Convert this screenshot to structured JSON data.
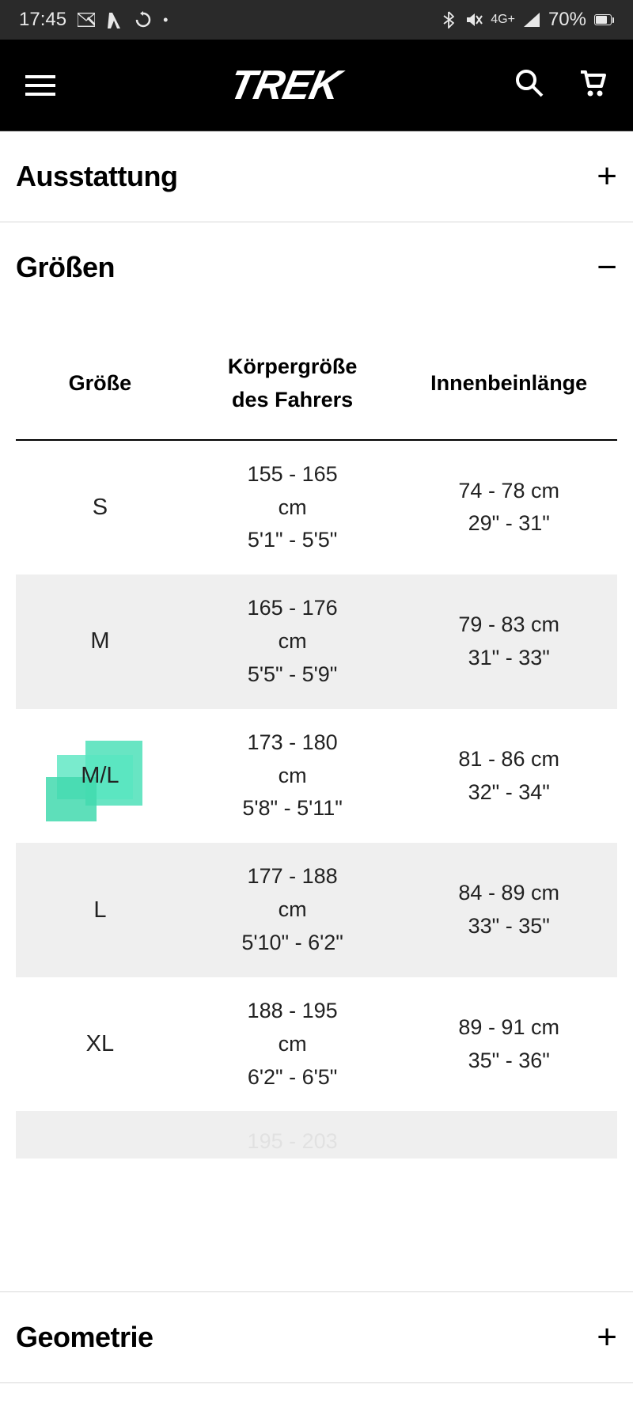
{
  "status": {
    "time": "17:45",
    "network": "4G+",
    "battery": "70%"
  },
  "nav": {
    "logo": "TREK"
  },
  "sections": {
    "equipment": {
      "title": "Ausstattung",
      "expanded": false
    },
    "sizes": {
      "title": "Größen",
      "expanded": true
    },
    "geometry": {
      "title": "Geometrie",
      "expanded": false
    }
  },
  "table": {
    "headers": {
      "size": "Größe",
      "height_l1": "Körpergröße",
      "height_l2": "des Fahrers",
      "inseam": "Innenbeinlänge"
    },
    "rows": [
      {
        "size": "S",
        "h_cm": "155 - 165 cm",
        "h_imp": "5'1\" - 5'5\"",
        "i_cm": "74 - 78 cm",
        "i_imp": "29\" - 31\"",
        "highlight": false
      },
      {
        "size": "M",
        "h_cm": "165 - 176 cm",
        "h_imp": "5'5\" - 5'9\"",
        "i_cm": "79 - 83 cm",
        "i_imp": "31\" - 33\"",
        "highlight": false
      },
      {
        "size": "M/L",
        "h_cm": "173 - 180 cm",
        "h_imp": "5'8\" - 5'11\"",
        "i_cm": "81 - 86 cm",
        "i_imp": "32\" - 34\"",
        "highlight": true
      },
      {
        "size": "L",
        "h_cm": "177 - 188 cm",
        "h_imp": "5'10\" - 6'2\"",
        "i_cm": "84 - 89 cm",
        "i_imp": "33\" - 35\"",
        "highlight": false
      },
      {
        "size": "XL",
        "h_cm": "188 - 195 cm",
        "h_imp": "6'2\" - 6'5\"",
        "i_cm": "89 - 91 cm",
        "i_imp": "35\" - 36\"",
        "highlight": false
      }
    ],
    "partial_row": "195 - 203"
  },
  "colors": {
    "status_bg": "#2a2a2a",
    "nav_bg": "#000000",
    "highlight": "#4de0b8",
    "row_alt": "#efefef",
    "text": "#000000"
  }
}
